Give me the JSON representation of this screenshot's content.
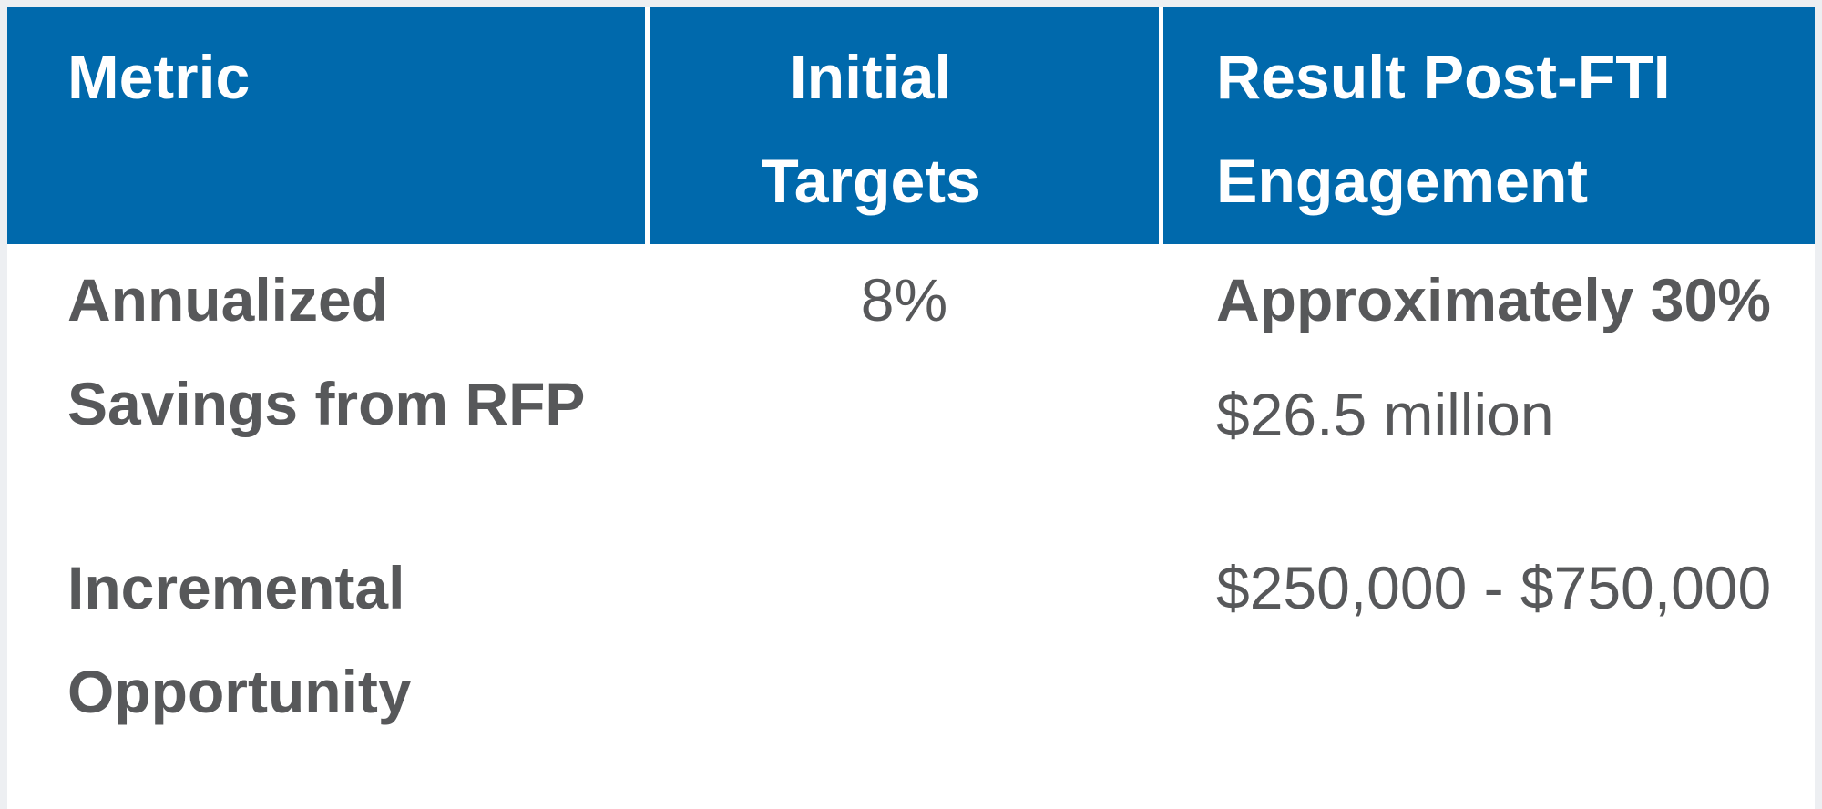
{
  "colors": {
    "header_background": "#0069ac",
    "header_text": "#ffffff",
    "body_text": "#57585a",
    "alt_row_background": "#f4f4f5",
    "separator": "#ffffff",
    "page_background": "#edeff2"
  },
  "table": {
    "columns": [
      {
        "label": "Metric"
      },
      {
        "label": "Initial Targets"
      },
      {
        "label": "Result Post-FTI Engagement"
      }
    ],
    "rows": [
      {
        "metric": "Annualized Savings from RFP",
        "initial_target": "8%",
        "result_primary": "Approximately 30%",
        "result_secondary": "$26.5 million"
      },
      {
        "metric": "Incremental Opportunity",
        "initial_target": "",
        "result_primary": "",
        "result_secondary": "$250,000 - $750,000"
      }
    ]
  },
  "chart_data": {
    "type": "table",
    "title": "",
    "columns": [
      "Metric",
      "Initial Targets",
      "Result Post-FTI Engagement"
    ],
    "cells": [
      [
        "Annualized Savings from RFP",
        "8%",
        "Approximately 30% $26.5 million"
      ],
      [
        "Incremental Opportunity",
        "",
        "$250,000 - $750,000"
      ]
    ]
  }
}
